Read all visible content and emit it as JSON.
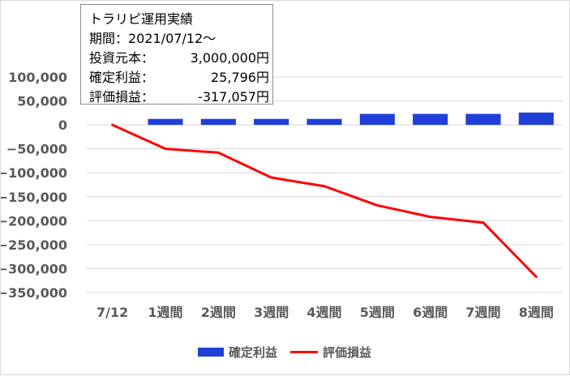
{
  "info_box": {
    "title": "トラリピ運用実績",
    "period_label": "期間：2021/07/12～",
    "rows": [
      {
        "label": "投資元本：",
        "value": "3,000,000円"
      },
      {
        "label": "確定利益：",
        "value": "25,796円"
      },
      {
        "label": "評価損益：",
        "value": "-317,057円"
      }
    ]
  },
  "chart_data": {
    "type": "bar+line",
    "categories": [
      "7/12",
      "1週間",
      "2週間",
      "3週間",
      "4週間",
      "5週間",
      "6週間",
      "7週間",
      "8週間"
    ],
    "series": [
      {
        "name": "確定利益",
        "type": "bar",
        "color": "#1f3fd6",
        "values": [
          0,
          12500,
          12500,
          12500,
          12500,
          23000,
          23000,
          23000,
          25796
        ]
      },
      {
        "name": "評価損益",
        "type": "line",
        "color": "#ff0000",
        "values": [
          0,
          -50000,
          -58000,
          -110000,
          -128000,
          -168000,
          -192000,
          -204000,
          -317057
        ]
      }
    ],
    "yticks": [
      100000,
      50000,
      0,
      -50000,
      -100000,
      -150000,
      -200000,
      -250000,
      -300000,
      -350000
    ],
    "ytick_labels": [
      "100,000",
      "50,000",
      "0",
      "−50,000",
      "−100,000",
      "−150,000",
      "−200,000",
      "−250,000",
      "−300,000",
      "−350,000"
    ],
    "ylim": [
      -350000,
      100000
    ],
    "grid": true,
    "legend_position": "bottom"
  }
}
